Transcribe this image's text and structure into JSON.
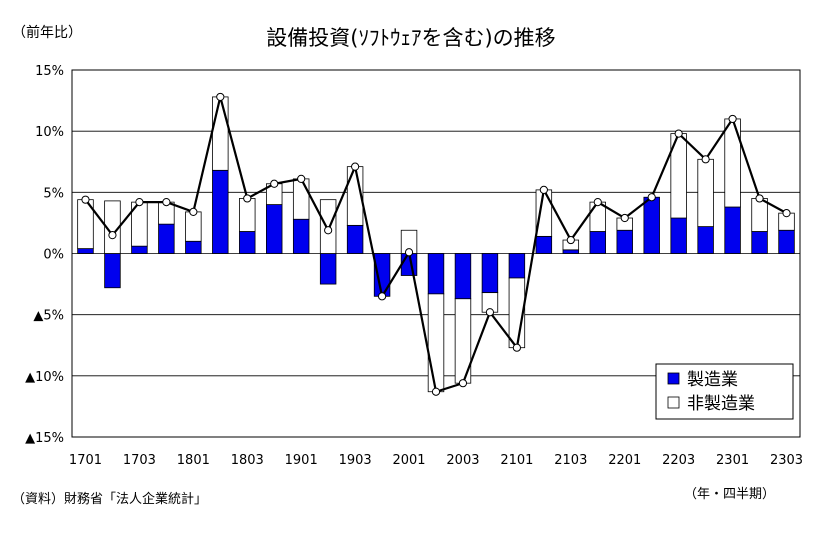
{
  "title": "設備投資(ｿﾌﾄｳｪｱを含む)の推移",
  "unit_label": "（前年比）",
  "source": "（資料）財務省「法人企業統計」",
  "x_unit_label": "（年・四半期）",
  "chart_data": {
    "type": "bar",
    "stacked": true,
    "categories": [
      "1701",
      "1702",
      "1703",
      "1704",
      "1801",
      "1802",
      "1803",
      "1804",
      "1901",
      "1902",
      "1903",
      "1904",
      "2001",
      "2002",
      "2003",
      "2004",
      "2101",
      "2102",
      "2103",
      "2104",
      "2201",
      "2202",
      "2203",
      "2204",
      "2301",
      "2302",
      "2303"
    ],
    "x_tick_labels": [
      "1701",
      "1703",
      "1801",
      "1803",
      "1901",
      "1903",
      "2001",
      "2003",
      "2101",
      "2103",
      "2201",
      "2203",
      "2301",
      "2303"
    ],
    "y_tick_labels": [
      "15%",
      "10%",
      "5%",
      "0%",
      "▲5%",
      "▲10%",
      "▲15%"
    ],
    "ylim": [
      -15,
      15
    ],
    "y_ticks": [
      15,
      10,
      5,
      0,
      -5,
      -10,
      -15
    ],
    "grid": true,
    "legend_position": "bottom-right",
    "series": [
      {
        "name": "製造業",
        "kind": "bar",
        "color": "#0000ee",
        "values": [
          0.4,
          -2.8,
          0.6,
          2.4,
          1.0,
          6.8,
          1.8,
          4.0,
          2.8,
          -2.5,
          2.3,
          -3.5,
          -1.8,
          -3.3,
          -3.7,
          -3.2,
          -2.0,
          1.4,
          0.3,
          1.8,
          1.9,
          4.6,
          2.9,
          2.2,
          3.8,
          1.8,
          1.9
        ]
      },
      {
        "name": "非製造業",
        "kind": "bar",
        "color": "#ffffff",
        "values": [
          4.0,
          4.3,
          3.6,
          1.8,
          2.4,
          6.0,
          2.7,
          1.7,
          3.3,
          4.4,
          4.8,
          0.0,
          1.9,
          -8.0,
          -6.9,
          -1.6,
          -5.7,
          3.8,
          0.8,
          2.4,
          1.0,
          0.0,
          6.9,
          5.5,
          7.2,
          2.7,
          1.4
        ]
      },
      {
        "name": "",
        "kind": "line",
        "color": "#000000",
        "values": [
          4.4,
          1.5,
          4.2,
          4.2,
          3.4,
          12.8,
          4.5,
          5.7,
          6.1,
          1.9,
          7.1,
          -3.5,
          0.1,
          -11.3,
          -10.6,
          -4.8,
          -7.7,
          5.2,
          1.1,
          4.2,
          2.9,
          4.6,
          9.8,
          7.7,
          11.0,
          4.5,
          3.3
        ]
      }
    ]
  }
}
